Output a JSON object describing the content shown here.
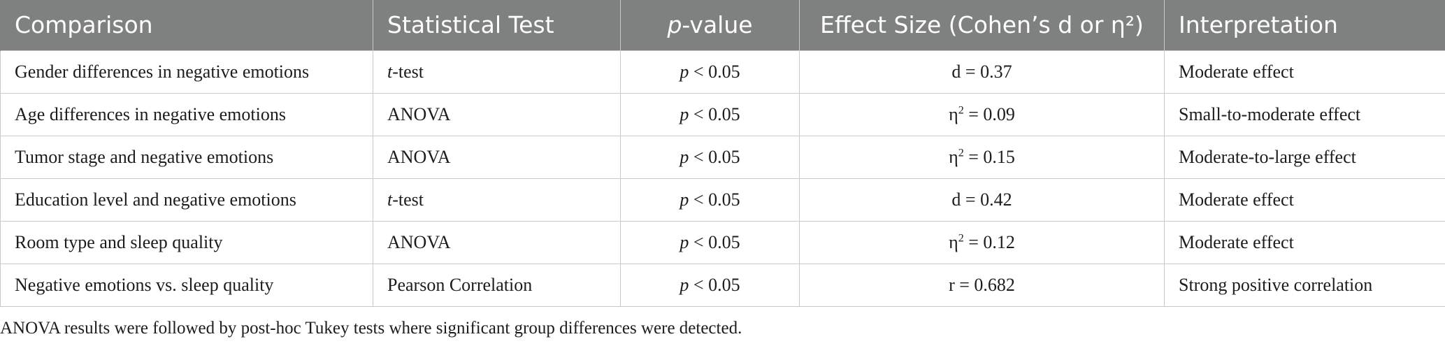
{
  "table": {
    "headers": {
      "comparison": "Comparison",
      "test": "Statistical Test",
      "pvalue_p": "p",
      "pvalue_rest": "-value",
      "effect": "Effect Size (Cohen’s d or η²)",
      "interpretation": "Interpretation"
    },
    "rows": [
      {
        "comparison": "Gender differences in negative emotions",
        "test_italic": "t",
        "test_rest": "-test",
        "p_italic": "p",
        "p_rest": " < 0.05",
        "effect_symbol": "d",
        "effect_sup": "",
        "effect_value": " = 0.37",
        "interpretation": "Moderate effect"
      },
      {
        "comparison": "Age differences in negative emotions",
        "test_italic": "",
        "test_rest": "ANOVA",
        "p_italic": "p",
        "p_rest": " < 0.05",
        "effect_symbol": "η",
        "effect_sup": "2",
        "effect_value": " = 0.09",
        "interpretation": "Small-to-moderate effect"
      },
      {
        "comparison": "Tumor stage and negative emotions",
        "test_italic": "",
        "test_rest": "ANOVA",
        "p_italic": "p",
        "p_rest": " < 0.05",
        "effect_symbol": "η",
        "effect_sup": "2",
        "effect_value": " = 0.15",
        "interpretation": "Moderate-to-large effect"
      },
      {
        "comparison": "Education level and negative emotions",
        "test_italic": "t",
        "test_rest": "-test",
        "p_italic": "p",
        "p_rest": " < 0.05",
        "effect_symbol": "d",
        "effect_sup": "",
        "effect_value": " = 0.42",
        "interpretation": "Moderate effect"
      },
      {
        "comparison": "Room type and sleep quality",
        "test_italic": "",
        "test_rest": "ANOVA",
        "p_italic": "p",
        "p_rest": " < 0.05",
        "effect_symbol": "η",
        "effect_sup": "2",
        "effect_value": " = 0.12",
        "interpretation": "Moderate effect"
      },
      {
        "comparison": "Negative emotions vs. sleep quality",
        "test_italic": "",
        "test_rest": "Pearson Correlation",
        "p_italic": "p",
        "p_rest": " < 0.05",
        "effect_symbol": "r",
        "effect_sup": "",
        "effect_value": " = 0.682",
        "interpretation": "Strong positive correlation"
      }
    ]
  },
  "footnote": "ANOVA results were followed by post-hoc Tukey tests where significant group differences were detected."
}
